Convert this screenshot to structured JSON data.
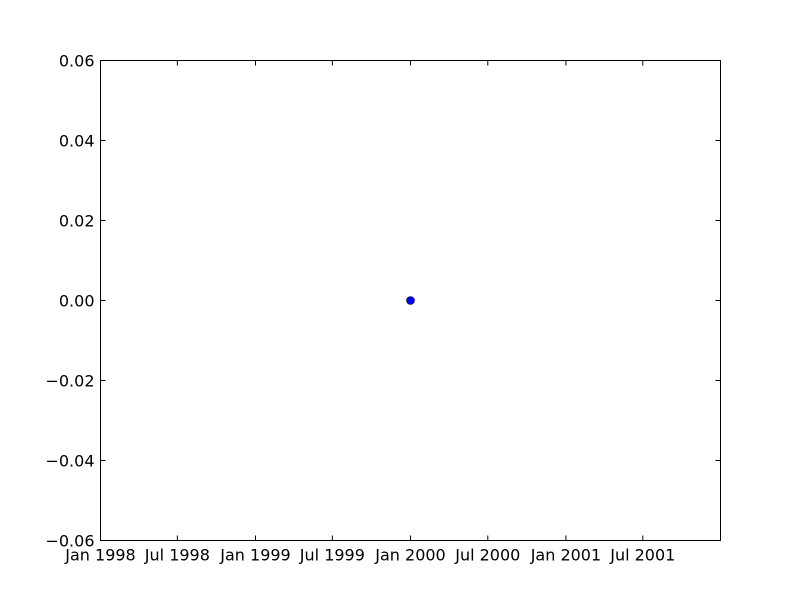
{
  "chart_data": {
    "type": "scatter",
    "title": "",
    "xlabel": "",
    "ylabel": "",
    "x_scale": "date",
    "xlim": [
      "1998-01-01",
      "2001-12-31"
    ],
    "ylim": [
      -0.06,
      0.06
    ],
    "grid": false,
    "legend": "none",
    "x_ticks": [
      {
        "value": "1998-01-01",
        "label": "Jan 1998"
      },
      {
        "value": "1998-07-01",
        "label": "Jul 1998"
      },
      {
        "value": "1999-01-01",
        "label": "Jan 1999"
      },
      {
        "value": "1999-07-01",
        "label": "Jul 1999"
      },
      {
        "value": "2000-01-01",
        "label": "Jan 2000"
      },
      {
        "value": "2000-07-01",
        "label": "Jul 2000"
      },
      {
        "value": "2001-01-01",
        "label": "Jan 2001"
      },
      {
        "value": "2001-07-01",
        "label": "Jul 2001"
      }
    ],
    "y_ticks": [
      {
        "value": 0.06,
        "label": "0.06"
      },
      {
        "value": 0.04,
        "label": "0.04"
      },
      {
        "value": 0.02,
        "label": "0.02"
      },
      {
        "value": 0.0,
        "label": "0.00"
      },
      {
        "value": -0.02,
        "label": "−0.02"
      },
      {
        "value": -0.04,
        "label": "−0.04"
      },
      {
        "value": -0.06,
        "label": "−0.06"
      }
    ],
    "series": [
      {
        "color": "#0000ff",
        "marker": "circle",
        "points": [
          {
            "x": "2000-01-01",
            "y": 0.0
          }
        ]
      }
    ]
  }
}
